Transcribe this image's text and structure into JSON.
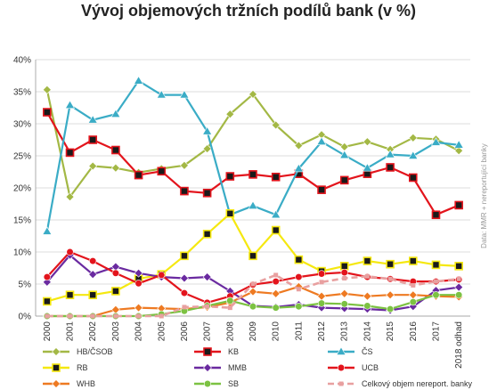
{
  "chart_data": {
    "type": "line",
    "title": "Vývoj objemových tržních podílů bank (v %)",
    "source_note": "Data: MMR + nereportující banky",
    "categories": [
      "2000",
      "2001",
      "2002",
      "2003",
      "2004",
      "2005",
      "2006",
      "2007",
      "2008",
      "2009",
      "2010",
      "2011",
      "2012",
      "2013",
      "2014",
      "2015",
      "2016",
      "2017",
      "2018 odhad"
    ],
    "ylim": [
      0,
      40
    ],
    "yticks": [
      0,
      5,
      10,
      15,
      20,
      25,
      30,
      35,
      40
    ],
    "ytick_labels": [
      "0%",
      "5%",
      "10%",
      "15%",
      "20%",
      "25%",
      "30%",
      "35%",
      "40%"
    ],
    "grid": true,
    "legend_position": "bottom",
    "series": [
      {
        "name": "HB/ČSOB",
        "color": "#a3b845",
        "marker": "diamond",
        "values": [
          35.3,
          18.6,
          23.4,
          23.1,
          22.4,
          23.0,
          23.5,
          26.1,
          31.5,
          34.6,
          29.8,
          26.6,
          28.3,
          26.4,
          27.2,
          26.0,
          27.8,
          27.6,
          25.8
        ]
      },
      {
        "name": "KB",
        "color": "#e3141c",
        "marker": "square",
        "values": [
          31.8,
          25.5,
          27.5,
          25.9,
          22.0,
          22.6,
          19.5,
          19.2,
          21.8,
          22.1,
          21.7,
          22.2,
          19.7,
          21.2,
          22.2,
          23.2,
          21.6,
          15.8,
          17.3
        ]
      },
      {
        "name": "ČS",
        "color": "#3aacc6",
        "marker": "triangle",
        "values": [
          13.2,
          32.9,
          30.6,
          31.5,
          36.7,
          34.5,
          34.5,
          28.8,
          15.8,
          17.2,
          15.8,
          23.0,
          27.2,
          25.1,
          23.1,
          25.2,
          25.0,
          27.1,
          26.7
        ]
      },
      {
        "name": "RB",
        "color": "#f5e810",
        "marker": "square",
        "values": [
          2.3,
          3.3,
          3.3,
          3.9,
          5.8,
          6.5,
          9.4,
          12.8,
          16.0,
          9.4,
          13.4,
          8.8,
          7.0,
          7.8,
          8.6,
          8.1,
          8.6,
          8.0,
          7.8
        ]
      },
      {
        "name": "MMB",
        "color": "#6a2aa0",
        "marker": "diamond",
        "values": [
          5.3,
          9.5,
          6.5,
          7.7,
          6.7,
          6.1,
          5.9,
          6.1,
          3.9,
          1.6,
          1.4,
          1.8,
          1.3,
          1.2,
          1.1,
          0.9,
          1.5,
          4.0,
          4.5
        ]
      },
      {
        "name": "UCB",
        "color": "#e3141c",
        "marker": "circle",
        "values": [
          6.1,
          10.0,
          8.6,
          6.7,
          5.1,
          6.4,
          3.6,
          2.1,
          3.1,
          4.9,
          5.4,
          6.1,
          6.6,
          6.8,
          6.1,
          5.8,
          5.4,
          5.4,
          5.7
        ]
      },
      {
        "name": "WHB",
        "color": "#ee7a22",
        "marker": "diamond",
        "values": [
          0.0,
          0.0,
          0.0,
          1.0,
          1.3,
          1.2,
          1.1,
          1.4,
          2.1,
          3.8,
          3.5,
          4.6,
          3.1,
          3.5,
          3.1,
          3.3,
          3.3,
          3.1,
          3.0
        ]
      },
      {
        "name": "SB",
        "color": "#7cc242",
        "marker": "circle",
        "values": [
          0.0,
          0.0,
          0.0,
          0.0,
          0.0,
          0.3,
          0.8,
          1.6,
          2.4,
          1.5,
          1.3,
          1.5,
          2.0,
          1.9,
          1.6,
          1.1,
          2.2,
          3.3,
          3.3
        ]
      },
      {
        "name": "Celkový objem nereport. banky",
        "color": "#e8a0a0",
        "marker": "square",
        "dashed": true,
        "values": [
          0.0,
          0.0,
          0.0,
          0.0,
          0.0,
          0.0,
          1.4,
          1.5,
          1.3,
          5.0,
          6.4,
          4.2,
          5.3,
          5.9,
          6.2,
          5.8,
          4.8,
          5.4,
          5.8
        ]
      }
    ]
  }
}
